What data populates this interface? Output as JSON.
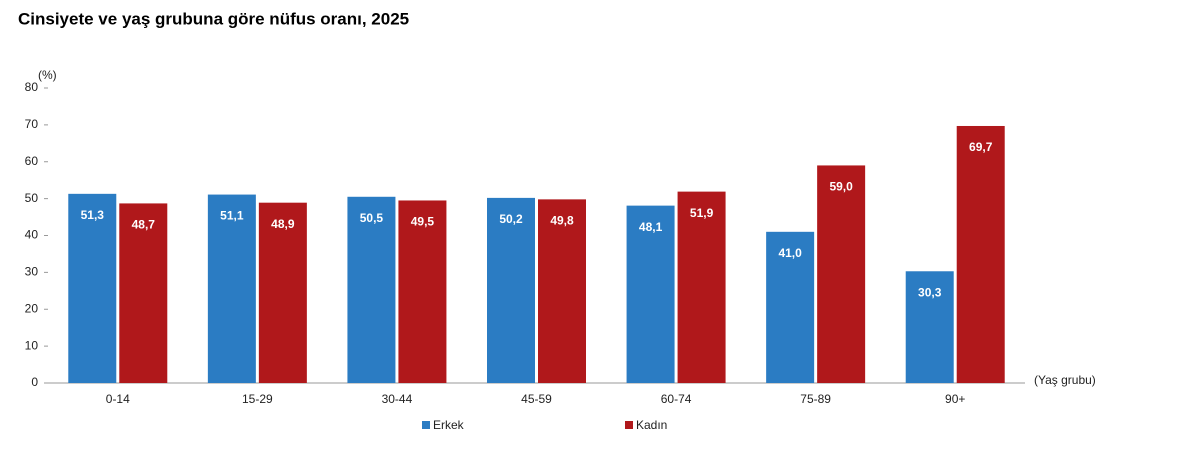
{
  "chart_data": {
    "type": "bar",
    "title": "Cinsiyete ve yaş grubuna göre nüfus oranı, 2025",
    "y_unit": "(%)",
    "x_label": "(Yaş grubu)",
    "categories": [
      "0-14",
      "15-29",
      "30-44",
      "45-59",
      "60-74",
      "75-89",
      "90+"
    ],
    "series": [
      {
        "name": "Erkek",
        "color": "#2b7cc3",
        "values": [
          51.3,
          51.1,
          50.5,
          50.2,
          48.1,
          41.0,
          30.3
        ],
        "value_labels": [
          "51,3",
          "51,1",
          "50,5",
          "50,2",
          "48,1",
          "41,0",
          "30,3"
        ]
      },
      {
        "name": "Kadın",
        "color": "#b0181b",
        "values": [
          48.7,
          48.9,
          49.5,
          49.8,
          51.9,
          59.0,
          69.7
        ],
        "value_labels": [
          "48,7",
          "48,9",
          "49,5",
          "49,8",
          "51,9",
          "59,0",
          "69,7"
        ]
      }
    ],
    "ylim": [
      0,
      80
    ],
    "yticks": [
      0,
      10,
      20,
      30,
      40,
      50,
      60,
      70,
      80
    ],
    "grid": false,
    "legend": "bottom"
  }
}
